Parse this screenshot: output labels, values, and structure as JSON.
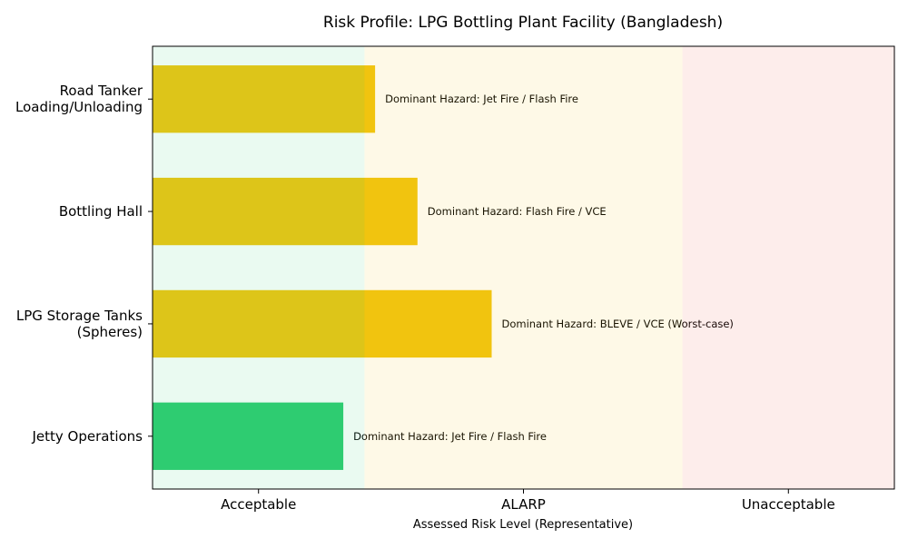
{
  "chart_data": {
    "type": "bar",
    "orientation": "horizontal",
    "title": "Risk Profile: LPG Bottling Plant Facility (Bangladesh)",
    "xlabel": "Assessed Risk Level (Representative)",
    "ylabel": "",
    "categories": [
      "Jetty Operations",
      "LPG Storage Tanks\n(Spheres)",
      "Bottling Hall",
      "Road Tanker\nLoading/Unloading"
    ],
    "values": [
      1.32,
      1.88,
      1.6,
      1.44
    ],
    "bar_colors": [
      "#2ECC71",
      "#F1C40F",
      "#F1C40F",
      "#F1C40F"
    ],
    "annotations": [
      "Dominant Hazard: Jet Fire / Flash Fire",
      "Dominant Hazard: BLEVE / VCE (Worst-case)",
      "Dominant Hazard: Flash Fire / VCE",
      "Dominant Hazard: Jet Fire / Flash Fire"
    ],
    "xticks": [
      1,
      2,
      3
    ],
    "xtick_labels": [
      "Acceptable",
      "ALARP",
      "Unacceptable"
    ],
    "xlim": [
      0.6,
      3.4
    ],
    "ylim": [
      -0.47,
      3.47
    ],
    "zones": [
      {
        "from": 0.6,
        "to": 1.4,
        "color": "#2ECC71",
        "alpha": 0.1
      },
      {
        "from": 1.4,
        "to": 2.6,
        "color": "#F1C40F",
        "alpha": 0.1
      },
      {
        "from": 2.6,
        "to": 3.4,
        "color": "#E74C3C",
        "alpha": 0.1
      }
    ],
    "grid": false,
    "legend": "none"
  }
}
